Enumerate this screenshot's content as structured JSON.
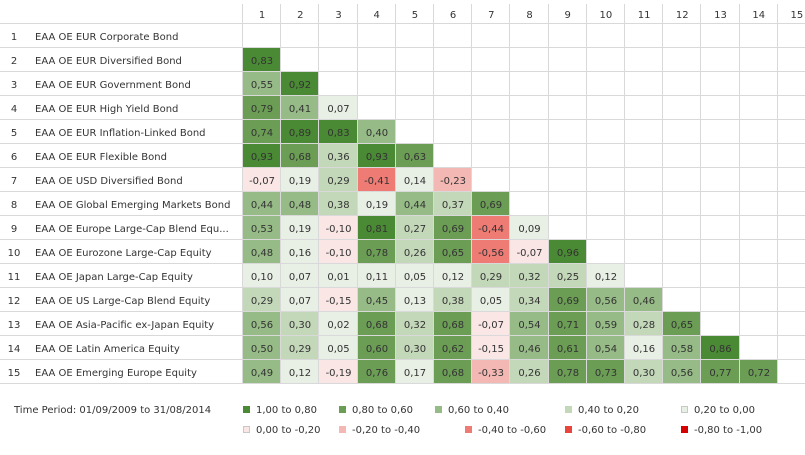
{
  "chart_data": {
    "type": "heatmap",
    "columns": [
      "1",
      "2",
      "3",
      "4",
      "5",
      "6",
      "7",
      "8",
      "9",
      "10",
      "11",
      "12",
      "13",
      "14",
      "15"
    ],
    "rows": [
      {
        "num": "1",
        "label": "EAA OE EUR Corporate Bond",
        "values": []
      },
      {
        "num": "2",
        "label": "EAA OE EUR Diversified Bond",
        "values": [
          "0,83"
        ]
      },
      {
        "num": "3",
        "label": "EAA OE EUR Government Bond",
        "values": [
          "0,55",
          "0,92"
        ]
      },
      {
        "num": "4",
        "label": "EAA OE EUR High Yield Bond",
        "values": [
          "0,79",
          "0,41",
          "0,07"
        ]
      },
      {
        "num": "5",
        "label": "EAA OE EUR Inflation-Linked Bond",
        "values": [
          "0,74",
          "0,89",
          "0,83",
          "0,40"
        ]
      },
      {
        "num": "6",
        "label": "EAA OE EUR Flexible Bond",
        "values": [
          "0,93",
          "0,68",
          "0,36",
          "0,93",
          "0,63"
        ]
      },
      {
        "num": "7",
        "label": "EAA OE USD Diversified Bond",
        "values": [
          "-0,07",
          "0,19",
          "0,29",
          "-0,41",
          "0,14",
          "-0,23"
        ]
      },
      {
        "num": "8",
        "label": "EAA OE Global Emerging Markets Bond",
        "values": [
          "0,44",
          "0,48",
          "0,38",
          "0,19",
          "0,44",
          "0,37",
          "0,69"
        ]
      },
      {
        "num": "9",
        "label": "EAA OE Europe Large-Cap Blend Equ...",
        "values": [
          "0,53",
          "0,19",
          "-0,10",
          "0,81",
          "0,27",
          "0,69",
          "-0,44",
          "0,09"
        ]
      },
      {
        "num": "10",
        "label": "EAA OE Eurozone Large-Cap Equity",
        "values": [
          "0,48",
          "0,16",
          "-0,10",
          "0,78",
          "0,26",
          "0,65",
          "-0,56",
          "-0,07",
          "0,96"
        ]
      },
      {
        "num": "11",
        "label": "EAA OE Japan Large-Cap Equity",
        "values": [
          "0,10",
          "0,07",
          "0,01",
          "0,11",
          "0,05",
          "0,12",
          "0,29",
          "0,32",
          "0,25",
          "0,12"
        ]
      },
      {
        "num": "12",
        "label": "EAA OE US Large-Cap Blend Equity",
        "values": [
          "0,29",
          "0,07",
          "-0,15",
          "0,45",
          "0,13",
          "0,38",
          "0,05",
          "0,34",
          "0,69",
          "0,56",
          "0,46"
        ]
      },
      {
        "num": "13",
        "label": "EAA OE Asia-Pacific ex-Japan Equity",
        "values": [
          "0,56",
          "0,30",
          "0,02",
          "0,68",
          "0,32",
          "0,68",
          "-0,07",
          "0,54",
          "0,71",
          "0,59",
          "0,28",
          "0,65"
        ]
      },
      {
        "num": "14",
        "label": "EAA OE Latin America Equity",
        "values": [
          "0,50",
          "0,29",
          "0,05",
          "0,60",
          "0,30",
          "0,62",
          "-0,15",
          "0,46",
          "0,61",
          "0,54",
          "0,16",
          "0,58",
          "0,86"
        ]
      },
      {
        "num": "15",
        "label": "EAA OE Emerging Europe Equity",
        "values": [
          "0,49",
          "0,12",
          "-0,19",
          "0,76",
          "0,17",
          "0,68",
          "-0,33",
          "0,26",
          "0,78",
          "0,73",
          "0,30",
          "0,56",
          "0,77",
          "0,72"
        ]
      }
    ],
    "bins": [
      {
        "label": "1,00 to 0,80",
        "min": 0.8,
        "max": 1.0,
        "color": "#4a8a34",
        "text": "#ffffff"
      },
      {
        "label": "0,80 to 0,60",
        "min": 0.6,
        "max": 0.8,
        "color": "#6b9d55",
        "text": "#ffffff"
      },
      {
        "label": "0,60 to 0,40",
        "min": 0.4,
        "max": 0.6,
        "color": "#96bb86",
        "text": "#333333"
      },
      {
        "label": "0,40 to 0,20",
        "min": 0.2,
        "max": 0.4,
        "color": "#c3d7b9",
        "text": "#333333"
      },
      {
        "label": "0,20 to 0,00",
        "min": 0.0,
        "max": 0.2,
        "color": "#e8efe4",
        "text": "#333333"
      },
      {
        "label": "0,00 to -0,20",
        "min": -0.2,
        "max": 0.0,
        "color": "#fbe6e6",
        "text": "#333333"
      },
      {
        "label": "-0,20 to -0,40",
        "min": -0.4,
        "max": -0.2,
        "color": "#f3b8b4",
        "text": "#333333"
      },
      {
        "label": "-0,40 to -0,60",
        "min": -0.6,
        "max": -0.4,
        "color": "#ee7b74",
        "text": "#333333"
      },
      {
        "label": "-0,60 to -0,80",
        "min": -0.8,
        "max": -0.6,
        "color": "#e8453c",
        "text": "#ffffff"
      },
      {
        "label": "-0,80 to -1,00",
        "min": -1.0,
        "max": -0.8,
        "color": "#d40000",
        "text": "#ffffff"
      }
    ],
    "grid_color": "#d9d9d9"
  },
  "footer": {
    "period_label": "Time Period:",
    "period_value": "01/09/2009 to 31/08/2014"
  }
}
